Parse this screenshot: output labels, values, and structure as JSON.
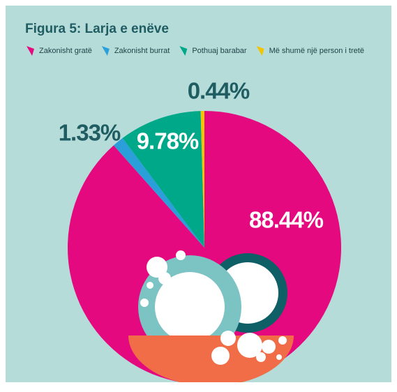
{
  "chart_data": {
    "type": "pie",
    "title": "Figura 5: Larja e enëve",
    "categories": [
      "Zakonisht gratë",
      "Zakonisht burrat",
      "Pothuaj barabar",
      "Më shumë një person i tretë"
    ],
    "values": [
      88.44,
      1.33,
      9.78,
      0.44
    ],
    "value_labels": [
      "88.44%",
      "1.33%",
      "9.78%",
      "0.44%"
    ],
    "colors": [
      "#e5097f",
      "#2b9fd9",
      "#00a88a",
      "#f2c500"
    ]
  }
}
